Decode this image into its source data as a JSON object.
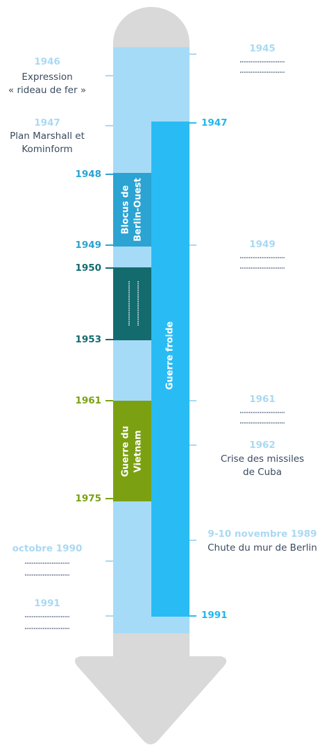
{
  "timeline": {
    "bars": [
      {
        "label": [
          "Guerre froide"
        ],
        "start": "1947",
        "end": "1991"
      },
      {
        "label": [
          "Blocus de",
          "Berlin-Ouest"
        ],
        "start": "1948",
        "end": "1949"
      },
      {
        "start": "1950",
        "end": "1953"
      },
      {
        "label": [
          "Guerre du",
          "Vietnam"
        ],
        "start": "1961",
        "end": "1975"
      }
    ],
    "left_events": [
      {
        "date": "1946",
        "text": [
          "Expression",
          "« rideau de fer »"
        ]
      },
      {
        "date": "1947",
        "text": [
          "Plan Marshall et",
          "Kominform"
        ]
      },
      {
        "date": "octobre 1990"
      },
      {
        "date": "1991"
      }
    ],
    "right_events": [
      {
        "date": "1945"
      },
      {
        "date": "1949"
      },
      {
        "date": "1961"
      },
      {
        "date": "1962",
        "text": [
          "Crise des missiles",
          "de Cuba"
        ]
      },
      {
        "date": "9-10 novembre 1989",
        "text": [
          "Chute du mur de Berlin"
        ]
      }
    ]
  }
}
